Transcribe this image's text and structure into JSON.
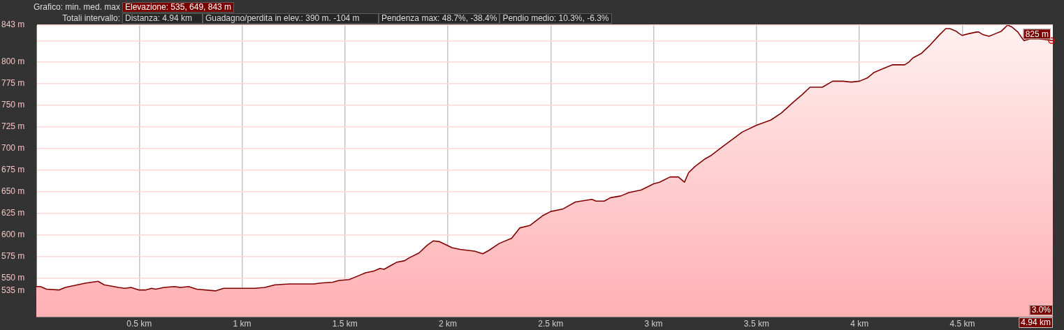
{
  "chart_data": {
    "type": "area",
    "color": "#800000",
    "x": [
      0,
      0.02,
      0.05,
      0.11,
      0.14,
      0.18,
      0.24,
      0.3,
      0.33,
      0.4,
      0.43,
      0.46,
      0.5,
      0.53,
      0.56,
      0.58,
      0.62,
      0.67,
      0.7,
      0.74,
      0.78,
      0.87,
      0.91,
      1.0,
      1.06,
      1.11,
      1.16,
      1.23,
      1.35,
      1.38,
      1.44,
      1.47,
      1.52,
      1.56,
      1.6,
      1.64,
      1.67,
      1.69,
      1.72,
      1.75,
      1.79,
      1.81,
      1.86,
      1.9,
      1.93,
      1.96,
      2.02,
      2.06,
      2.13,
      2.17,
      2.2,
      2.25,
      2.31,
      2.35,
      2.4,
      2.46,
      2.5,
      2.56,
      2.62,
      2.7,
      2.72,
      2.76,
      2.79,
      2.84,
      2.88,
      2.94,
      3.0,
      3.03,
      3.08,
      3.12,
      3.15,
      3.17,
      3.2,
      3.25,
      3.28,
      3.34,
      3.38,
      3.43,
      3.5,
      3.57,
      3.62,
      3.68,
      3.72,
      3.76,
      3.82,
      3.87,
      3.92,
      3.96,
      4.0,
      4.04,
      4.07,
      4.11,
      4.16,
      4.22,
      4.24,
      4.26,
      4.3,
      4.34,
      4.39,
      4.42,
      4.44,
      4.47,
      4.48,
      4.5,
      4.53,
      4.57,
      4.58,
      4.6,
      4.63,
      4.66,
      4.69,
      4.72,
      4.74,
      4.77,
      4.79,
      4.8,
      4.83,
      4.87,
      4.91,
      4.94
    ],
    "values": [
      540,
      540,
      537,
      536,
      539,
      541,
      544,
      546,
      542,
      539,
      538,
      539,
      536,
      536,
      538,
      537,
      539,
      540,
      539,
      540,
      537,
      535,
      538,
      538,
      538,
      539,
      542,
      543,
      543,
      544,
      545,
      547,
      548,
      552,
      556,
      558,
      561,
      560,
      564,
      568,
      570,
      573,
      579,
      588,
      593,
      592,
      585,
      583,
      581,
      578,
      582,
      590,
      596,
      608,
      611,
      622,
      627,
      630,
      638,
      641,
      639,
      639,
      643,
      645,
      649,
      652,
      659,
      661,
      667,
      667,
      661,
      672,
      679,
      688,
      692,
      703,
      710,
      719,
      727,
      733,
      741,
      754,
      762,
      771,
      771,
      778,
      778,
      777,
      778,
      782,
      788,
      792,
      797,
      797,
      800,
      805,
      810,
      819,
      832,
      839,
      839,
      836,
      834,
      831,
      833,
      835,
      835,
      832,
      830,
      833,
      836,
      843,
      841,
      835,
      828,
      825,
      827,
      827,
      826,
      825
    ],
    "xlim": [
      0,
      4.94
    ],
    "xticks": [
      {
        "value": 0.5,
        "label": "0.5 km"
      },
      {
        "value": 1,
        "label": "1 km"
      },
      {
        "value": 1.5,
        "label": "1.5 km"
      },
      {
        "value": 2,
        "label": "2 km"
      },
      {
        "value": 2.5,
        "label": "2.5 km"
      },
      {
        "value": 3,
        "label": "3 km"
      },
      {
        "value": 3.5,
        "label": "3.5 km"
      },
      {
        "value": 4,
        "label": "4 km"
      },
      {
        "value": 4.5,
        "label": "4.5 km"
      }
    ],
    "ylim": [
      505,
      843
    ],
    "yticks": [
      {
        "value": 535,
        "label": "535 m"
      },
      {
        "value": 550,
        "label": "550 m"
      },
      {
        "value": 575,
        "label": "575 m"
      },
      {
        "value": 600,
        "label": "600 m"
      },
      {
        "value": 625,
        "label": "625 m"
      },
      {
        "value": 650,
        "label": "650 m"
      },
      {
        "value": 675,
        "label": "675 m"
      },
      {
        "value": 700,
        "label": "700 m"
      },
      {
        "value": 725,
        "label": "725 m"
      },
      {
        "value": 750,
        "label": "750 m"
      },
      {
        "value": 775,
        "label": "775 m"
      },
      {
        "value": 800,
        "label": "800 m"
      },
      {
        "value": 825,
        "label": null
      },
      {
        "value": 843,
        "label": "843 m"
      }
    ],
    "grid": true,
    "annotations": [
      "Grafico: min. med. max",
      "Elevazione: 535, 649, 843 m",
      "Totali intervallo:",
      "Distanza: 4.94 km",
      "Guadagno/perdita in elev.: 390 m. -104 m",
      "Pendenza max: 48.7%, -38.4%",
      "Pendio medio: 10.3%, -6.3%",
      "3.0%",
      "4.94 km",
      {
        "text": "825 m",
        "x": 4.94,
        "y": 825
      }
    ]
  }
}
